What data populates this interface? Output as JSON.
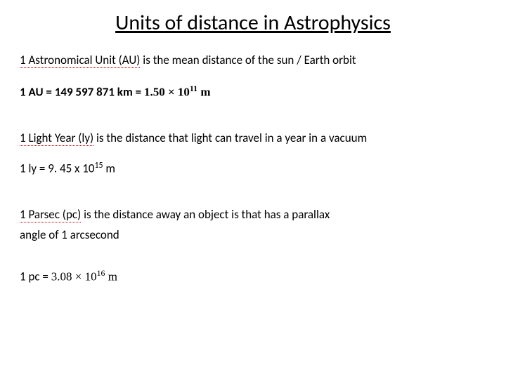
{
  "title": "Units of distance in Astrophysics",
  "au": {
    "term": "1 Astronomical Unit (AU)",
    "desc": " is the mean distance of the sun / Earth orbit",
    "eq_prefix": "1 AU = 149 597 871 km = ",
    "eq_value": "1.50 × 10",
    "eq_exp": "11",
    "eq_unit": " m"
  },
  "ly": {
    "term": "1 Light Year (ly)",
    "desc": " is the distance that light can travel in a year in a vacuum",
    "eq_prefix": "1 ly = 9. 45 x 10",
    "eq_exp": "15",
    "eq_unit": " m"
  },
  "pc": {
    "term": "1 Parsec (pc)",
    "desc1": " is the distance away an object is that has a parallax",
    "desc2": "angle of 1 arcsecond",
    "eq_prefix": "1 pc = ",
    "eq_value": "3.08 × 10",
    "eq_exp": "16",
    "eq_unit": " m"
  }
}
